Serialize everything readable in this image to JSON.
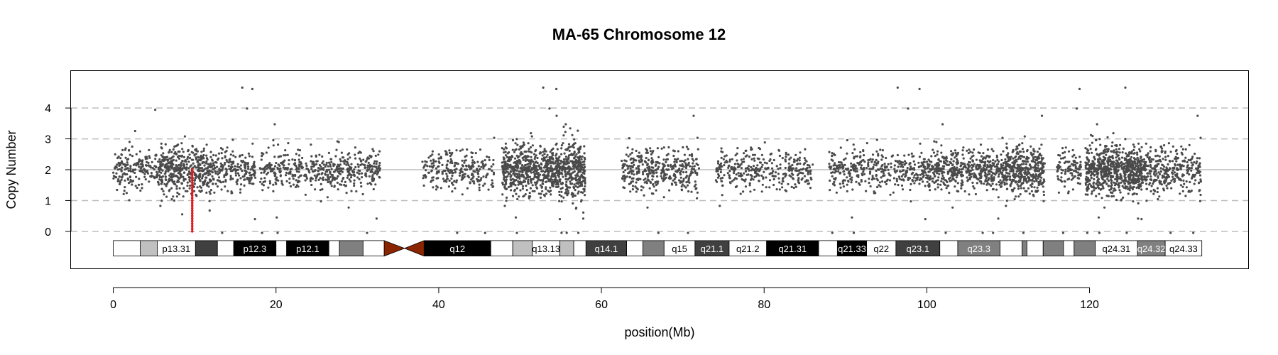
{
  "chart_data": {
    "type": "scatter",
    "title": "MA-65  Chromosome 12",
    "xlabel": "position(Mb)",
    "ylabel": "Copy Number",
    "xlim": [
      -5.2,
      139.5
    ],
    "ylim": [
      -1.2,
      5.2
    ],
    "x_ticks": [
      0,
      20,
      40,
      60,
      80,
      100,
      120
    ],
    "y_ticks": [
      0,
      1,
      2,
      3,
      4
    ],
    "grid": {
      "dashed_lines_at": [
        0,
        1,
        3,
        4
      ],
      "solid_line_at": 2
    },
    "point_color": "#4a4a4a",
    "point_density_clusters": [
      {
        "x_range": [
          0.0,
          2.0
        ],
        "density": 1.0,
        "spread": 0.45
      },
      {
        "x_range": [
          2.0,
          5.5
        ],
        "density": 0.8,
        "spread": 0.45
      },
      {
        "x_range": [
          5.5,
          12.0
        ],
        "density": 1.7,
        "spread": 0.55
      },
      {
        "x_range": [
          12.0,
          17.5
        ],
        "density": 1.0,
        "spread": 0.45
      },
      {
        "x_range": [
          18.0,
          27.0
        ],
        "density": 0.8,
        "spread": 0.45
      },
      {
        "x_range": [
          27.0,
          32.8
        ],
        "density": 0.9,
        "spread": 0.45
      },
      {
        "x_range": [
          38.0,
          47.0
        ],
        "density": 0.7,
        "spread": 0.45
      },
      {
        "x_range": [
          47.8,
          55.0
        ],
        "density": 2.2,
        "spread": 0.55
      },
      {
        "x_range": [
          55.0,
          58.0
        ],
        "density": 2.6,
        "spread": 0.7
      },
      {
        "x_range": [
          62.5,
          72.0
        ],
        "density": 1.0,
        "spread": 0.5
      },
      {
        "x_range": [
          74.0,
          86.0
        ],
        "density": 0.7,
        "spread": 0.45
      },
      {
        "x_range": [
          88.0,
          100.0
        ],
        "density": 0.8,
        "spread": 0.45
      },
      {
        "x_range": [
          100.0,
          109.5
        ],
        "density": 1.3,
        "spread": 0.45
      },
      {
        "x_range": [
          109.5,
          114.5
        ],
        "density": 2.0,
        "spread": 0.55
      },
      {
        "x_range": [
          116.0,
          119.0
        ],
        "density": 0.9,
        "spread": 0.45
      },
      {
        "x_range": [
          119.5,
          126.5
        ],
        "density": 2.6,
        "spread": 0.55
      },
      {
        "x_range": [
          126.5,
          133.8
        ],
        "density": 1.1,
        "spread": 0.55
      }
    ],
    "highlight_segment": {
      "color": "#e41a1c",
      "x": 9.7,
      "y_top": 2.0,
      "y_bottom": 0.0
    },
    "ideogram": {
      "y_top": -0.3,
      "y_bottom": -0.8,
      "bands": [
        {
          "start": 0.0,
          "end": 3.3,
          "fill": "#ffffff",
          "label": "",
          "text_color": "#000000"
        },
        {
          "start": 3.3,
          "end": 5.4,
          "fill": "#c0c0c0",
          "label": "",
          "text_color": "#000000"
        },
        {
          "start": 5.4,
          "end": 10.1,
          "fill": "#ffffff",
          "label": "p13.31",
          "text_color": "#000000"
        },
        {
          "start": 10.1,
          "end": 12.8,
          "fill": "#404040",
          "label": "",
          "text_color": "#ffffff"
        },
        {
          "start": 12.8,
          "end": 14.8,
          "fill": "#ffffff",
          "label": "",
          "text_color": "#000000"
        },
        {
          "start": 14.8,
          "end": 20.0,
          "fill": "#000000",
          "label": "p12.3",
          "text_color": "#ffffff"
        },
        {
          "start": 20.0,
          "end": 21.3,
          "fill": "#ffffff",
          "label": "",
          "text_color": "#000000"
        },
        {
          "start": 21.3,
          "end": 26.5,
          "fill": "#000000",
          "label": "p12.1",
          "text_color": "#ffffff"
        },
        {
          "start": 26.5,
          "end": 27.8,
          "fill": "#ffffff",
          "label": "",
          "text_color": "#000000"
        },
        {
          "start": 27.8,
          "end": 30.7,
          "fill": "#808080",
          "label": "",
          "text_color": "#ffffff"
        },
        {
          "start": 30.7,
          "end": 33.3,
          "fill": "#ffffff",
          "label": "",
          "text_color": "#000000"
        },
        {
          "start": 38.2,
          "end": 46.4,
          "fill": "#000000",
          "label": "q12",
          "text_color": "#ffffff"
        },
        {
          "start": 46.4,
          "end": 49.1,
          "fill": "#ffffff",
          "label": "",
          "text_color": "#000000"
        },
        {
          "start": 49.1,
          "end": 51.5,
          "fill": "#c0c0c0",
          "label": "",
          "text_color": "#000000"
        },
        {
          "start": 51.5,
          "end": 54.9,
          "fill": "#ffffff",
          "label": "q13.13",
          "text_color": "#000000"
        },
        {
          "start": 54.9,
          "end": 56.6,
          "fill": "#c0c0c0",
          "label": "",
          "text_color": "#000000"
        },
        {
          "start": 56.6,
          "end": 58.1,
          "fill": "#ffffff",
          "label": "",
          "text_color": "#000000"
        },
        {
          "start": 58.1,
          "end": 63.1,
          "fill": "#404040",
          "label": "q14.1",
          "text_color": "#ffffff"
        },
        {
          "start": 63.1,
          "end": 65.1,
          "fill": "#ffffff",
          "label": "",
          "text_color": "#000000"
        },
        {
          "start": 65.1,
          "end": 67.7,
          "fill": "#808080",
          "label": "",
          "text_color": "#ffffff"
        },
        {
          "start": 67.7,
          "end": 71.5,
          "fill": "#ffffff",
          "label": "q15",
          "text_color": "#000000"
        },
        {
          "start": 71.5,
          "end": 75.7,
          "fill": "#404040",
          "label": "q21.1",
          "text_color": "#ffffff"
        },
        {
          "start": 75.7,
          "end": 80.3,
          "fill": "#ffffff",
          "label": "q21.2",
          "text_color": "#000000"
        },
        {
          "start": 80.3,
          "end": 86.7,
          "fill": "#000000",
          "label": "q21.31",
          "text_color": "#ffffff"
        },
        {
          "start": 86.7,
          "end": 89.0,
          "fill": "#ffffff",
          "label": "",
          "text_color": "#000000"
        },
        {
          "start": 89.0,
          "end": 92.6,
          "fill": "#000000",
          "label": "q21.33",
          "text_color": "#ffffff"
        },
        {
          "start": 92.6,
          "end": 96.2,
          "fill": "#ffffff",
          "label": "q22",
          "text_color": "#000000"
        },
        {
          "start": 96.2,
          "end": 101.6,
          "fill": "#404040",
          "label": "q23.1",
          "text_color": "#ffffff"
        },
        {
          "start": 101.6,
          "end": 103.8,
          "fill": "#ffffff",
          "label": "",
          "text_color": "#000000"
        },
        {
          "start": 103.8,
          "end": 109.0,
          "fill": "#808080",
          "label": "q23.3",
          "text_color": "#ffffff"
        },
        {
          "start": 109.0,
          "end": 111.7,
          "fill": "#ffffff",
          "label": "",
          "text_color": "#000000"
        },
        {
          "start": 111.7,
          "end": 112.3,
          "fill": "#808080",
          "label": "",
          "text_color": "#ffffff"
        },
        {
          "start": 112.3,
          "end": 114.3,
          "fill": "#ffffff",
          "label": "",
          "text_color": "#000000"
        },
        {
          "start": 114.3,
          "end": 116.8,
          "fill": "#808080",
          "label": "",
          "text_color": "#ffffff"
        },
        {
          "start": 116.8,
          "end": 118.1,
          "fill": "#ffffff",
          "label": "",
          "text_color": "#000000"
        },
        {
          "start": 118.1,
          "end": 120.7,
          "fill": "#808080",
          "label": "",
          "text_color": "#ffffff"
        },
        {
          "start": 120.7,
          "end": 125.9,
          "fill": "#ffffff",
          "label": "q24.31",
          "text_color": "#000000"
        },
        {
          "start": 125.9,
          "end": 129.3,
          "fill": "#808080",
          "label": "q24.32",
          "text_color": "#ffffff"
        },
        {
          "start": 129.3,
          "end": 133.8,
          "fill": "#ffffff",
          "label": "q24.33",
          "text_color": "#000000"
        }
      ],
      "centromere": {
        "start": 33.3,
        "mid": 35.8,
        "end": 38.2,
        "fill": "#8b2500"
      }
    }
  }
}
